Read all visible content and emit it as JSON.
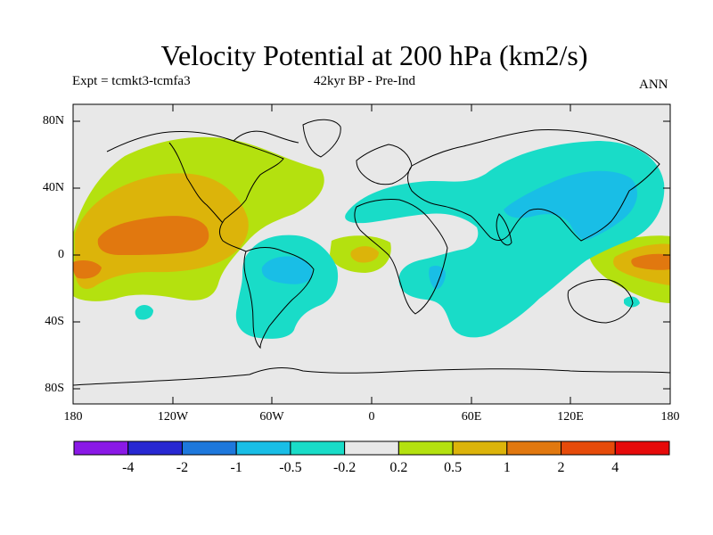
{
  "title": "Velocity Potential at 200 hPa (km2/s)",
  "experiment": "Expt = tcmkt3-tcmfa3",
  "period": "42kyr BP - Pre-Ind",
  "season": "ANN",
  "axes": {
    "lat_labels": [
      "80N",
      "40N",
      "0",
      "40S",
      "80S"
    ],
    "lon_labels": [
      "180",
      "120W",
      "60W",
      "0",
      "60E",
      "120E",
      "180"
    ]
  },
  "colorbar": {
    "labels": [
      "-4",
      "-2",
      "-1",
      "-0.5",
      "-0.2",
      "0.2",
      "0.5",
      "1",
      "2",
      "4"
    ],
    "colors": [
      "#8a19e6",
      "#2828d2",
      "#1e78dc",
      "#19bee6",
      "#19dcc8",
      "#e8e8e8",
      "#b4e10f",
      "#dcb40a",
      "#e1780f",
      "#e64b0a",
      "#e60a0a"
    ]
  },
  "map_colors": {
    "background": "#e8e8e8",
    "coast": "#000000"
  }
}
